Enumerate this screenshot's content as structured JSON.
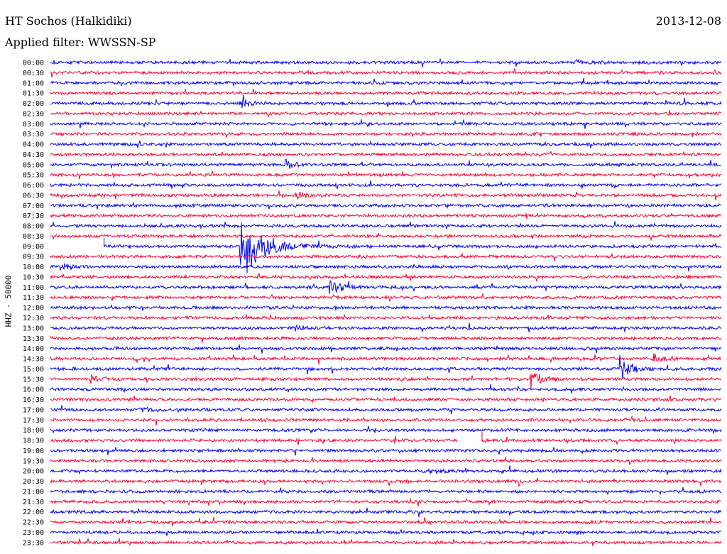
{
  "header": {
    "station": "HT Sochos (Halkidiki)",
    "date": "2013-12-08",
    "filter_text": "Applied filter: WWSSN-SP"
  },
  "chart_data": {
    "type": "line",
    "title": "HT Sochos (Halkidiki)",
    "subtitle": "Applied filter: WWSSN-SP",
    "ylabel": "HHZ - 50000",
    "xlabel": "",
    "grid": false,
    "colors": {
      "odd_rows": "#0000ff",
      "even_rows": "#ff0033"
    },
    "rows": [
      "00:00",
      "00:30",
      "01:00",
      "01:30",
      "02:00",
      "02:30",
      "03:00",
      "03:30",
      "04:00",
      "04:30",
      "05:00",
      "05:30",
      "06:00",
      "06:30",
      "07:00",
      "07:30",
      "08:00",
      "08:30",
      "09:00",
      "09:30",
      "10:00",
      "10:30",
      "11:00",
      "11:30",
      "12:00",
      "12:30",
      "13:00",
      "13:30",
      "14:00",
      "14:30",
      "15:00",
      "15:30",
      "16:00",
      "16:30",
      "17:00",
      "17:30",
      "18:00",
      "18:30",
      "19:00",
      "19:30",
      "20:00",
      "20:30",
      "21:00",
      "21:30",
      "22:00",
      "22:30",
      "23:00",
      "23:30"
    ],
    "events": [
      {
        "row": 0,
        "minute": 23.5,
        "amplitude": 4
      },
      {
        "row": 4,
        "minute": 8.5,
        "amplitude": 7
      },
      {
        "row": 10,
        "minute": 10.5,
        "amplitude": 8
      },
      {
        "row": 13,
        "minute": 11,
        "amplitude": 6
      },
      {
        "row": 18,
        "minute": 8.5,
        "amplitude": 60
      },
      {
        "row": 20,
        "minute": 0.5,
        "amplitude": 6
      },
      {
        "row": 22,
        "minute": 12.5,
        "amplitude": 14
      },
      {
        "row": 30,
        "minute": 25.5,
        "amplitude": 18
      },
      {
        "row": 31,
        "minute": 21.5,
        "amplitude": 16
      },
      {
        "row": 31,
        "minute": 1.8,
        "amplitude": 7
      },
      {
        "row": 29,
        "minute": 27,
        "amplitude": 8
      },
      {
        "row": 34,
        "minute": 4,
        "amplitude": 5
      },
      {
        "row": 40,
        "minute": 17,
        "amplitude": 5
      },
      {
        "row": 26,
        "minute": 11,
        "amplitude": 4
      }
    ],
    "gaps": [
      {
        "row": 18,
        "from_minute": 0,
        "to_minute": 2.4
      },
      {
        "row": 37,
        "from_minute": 18.2,
        "to_minute": 19.3
      }
    ]
  }
}
